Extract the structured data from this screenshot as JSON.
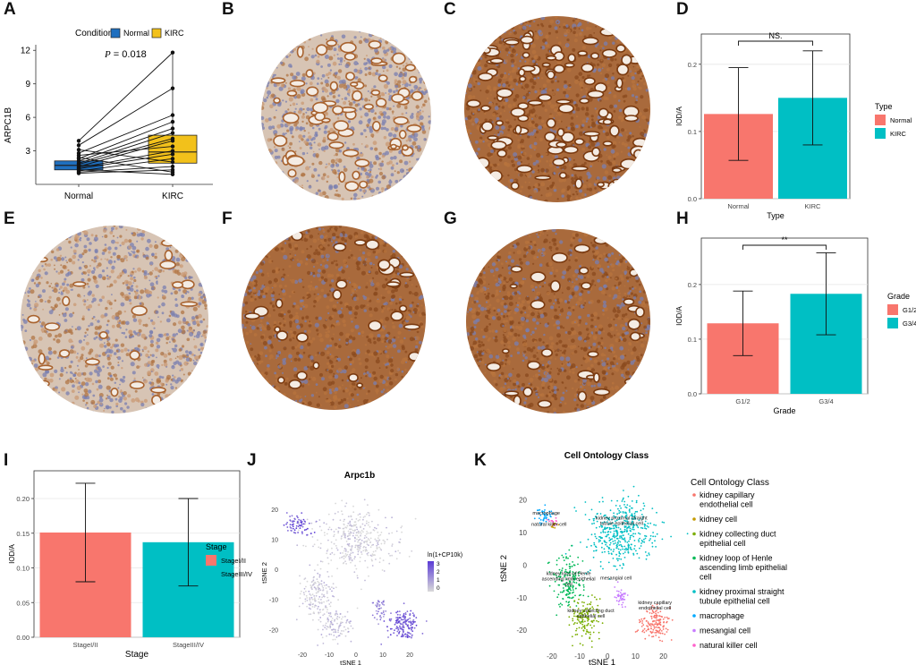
{
  "panels": {
    "A": "A",
    "B": "B",
    "C": "C",
    "D": "D",
    "E": "E",
    "F": "F",
    "G": "G",
    "H": "H",
    "I": "I",
    "J": "J",
    "K": "K"
  },
  "colors": {
    "normal_box": "#1f6fbf",
    "kirc_box": "#f2c11b",
    "salmon": "#f8766d",
    "teal": "#00bfc4",
    "tissue_brown": "#a0602e",
    "tissue_blue": "#8b8fb5",
    "expr_high": "#5b3bd6",
    "expr_low": "#d9d9d9"
  },
  "chart_data": [
    {
      "id": "A",
      "type": "box-paired",
      "title": "",
      "legend_title": "Condition",
      "legend": [
        "Normal",
        "KIRC"
      ],
      "annotation": "P = 0.018",
      "annotation_p": "P",
      "annotation_rest": "= 0.018",
      "xlabel": "",
      "ylabel": "ARPC1B",
      "categories": [
        "Normal",
        "KIRC"
      ],
      "ylim": [
        0,
        12.5
      ],
      "yticks": [
        3,
        6,
        9,
        12
      ],
      "box_normal": {
        "q1": 1.3,
        "median": 1.7,
        "q3": 2.1,
        "whisker_low": 1.0,
        "whisker_high": 3.9
      },
      "box_kirc": {
        "q1": 1.9,
        "median": 2.9,
        "q3": 4.4,
        "whisker_low": 0.9,
        "whisker_high": 11.8
      },
      "pairs": [
        [
          3.9,
          11.8
        ],
        [
          3.5,
          8.6
        ],
        [
          2.8,
          6.2
        ],
        [
          2.3,
          5.6
        ],
        [
          2.1,
          5.0
        ],
        [
          1.9,
          4.6
        ],
        [
          1.8,
          4.1
        ],
        [
          1.6,
          3.9
        ],
        [
          2.6,
          3.4
        ],
        [
          1.5,
          3.0
        ],
        [
          1.4,
          2.7
        ],
        [
          1.2,
          2.3
        ],
        [
          3.1,
          2.0
        ],
        [
          1.1,
          1.6
        ],
        [
          1.0,
          1.3
        ],
        [
          2.4,
          1.1
        ],
        [
          1.3,
          0.9
        ]
      ]
    },
    {
      "id": "D",
      "type": "bar",
      "title": "",
      "xlabel": "Type",
      "ylabel": "IOD/A",
      "legend_title": "Type",
      "categories": [
        "Normal",
        "KIRC"
      ],
      "values": [
        0.126,
        0.15
      ],
      "errors": [
        0.069,
        0.07
      ],
      "ylim": [
        0,
        0.245
      ],
      "yticks": [
        "0.0",
        "0.1",
        "0.2"
      ],
      "ytick_values": [
        0,
        0.1,
        0.2
      ],
      "significance": "NS."
    },
    {
      "id": "H",
      "type": "bar",
      "title": "",
      "xlabel": "Grade",
      "ylabel": "IOD/A",
      "legend_title": "Grade",
      "categories": [
        "G1/2",
        "G3/4"
      ],
      "values": [
        0.129,
        0.183
      ],
      "errors": [
        0.059,
        0.075
      ],
      "ylim": [
        0,
        0.285
      ],
      "yticks": [
        "0.0",
        "0.1",
        "0.2"
      ],
      "ytick_values": [
        0,
        0.1,
        0.2
      ],
      "significance": "**"
    },
    {
      "id": "I",
      "type": "bar",
      "title": "",
      "xlabel": "Stage",
      "ylabel": "IOD/A",
      "legend_title": "Stage",
      "categories": [
        "StageI/II",
        "StageIII/IV"
      ],
      "values": [
        0.151,
        0.137
      ],
      "errors": [
        0.071,
        0.063
      ],
      "ylim": [
        0,
        0.24
      ],
      "yticks": [
        "0.00",
        "0.05",
        "0.10",
        "0.15",
        "0.20"
      ],
      "ytick_values": [
        0,
        0.05,
        0.1,
        0.15,
        0.2
      ],
      "significance": ""
    },
    {
      "id": "J",
      "type": "scatter",
      "title": "Arpc1b",
      "xlabel": "tSNE 1",
      "ylabel": "tSNE 2",
      "xlim": [
        -28,
        24
      ],
      "ylim": [
        -26,
        24
      ],
      "xticks": [
        "-20",
        "-10",
        "0",
        "10",
        "20"
      ],
      "xtick_values": [
        -20,
        -10,
        0,
        10,
        20
      ],
      "yticks": [
        "20",
        "10",
        "0",
        "-10",
        "-20"
      ],
      "ytick_values": [
        20,
        10,
        0,
        -10,
        -20
      ],
      "colorbar_title": "ln(1+CP10k)",
      "colorbar_ticks": [
        "3",
        "2",
        "1",
        "0"
      ],
      "clusters": [
        {
          "cx": -22,
          "cy": 15,
          "sx": 2.5,
          "sy": 1.8,
          "n": 70,
          "level": 0.85
        },
        {
          "cx": 0,
          "cy": 10,
          "sx": 7,
          "sy": 5,
          "n": 380,
          "level": 0.05
        },
        {
          "cx": -15,
          "cy": -8,
          "sx": 3,
          "sy": 4,
          "n": 160,
          "level": 0.1
        },
        {
          "cx": -8,
          "cy": -18,
          "sx": 3,
          "sy": 3,
          "n": 110,
          "level": 0.15
        },
        {
          "cx": 9,
          "cy": -13,
          "sx": 1.2,
          "sy": 2,
          "n": 40,
          "level": 0.55
        },
        {
          "cx": 18,
          "cy": -18,
          "sx": 3,
          "sy": 2.6,
          "n": 160,
          "level": 0.8
        }
      ]
    },
    {
      "id": "K",
      "type": "scatter",
      "title": "Cell Ontology Class",
      "xlabel": "tSNE 1",
      "ylabel": "tSNE 2",
      "xlim": [
        -28,
        24
      ],
      "ylim": [
        -26,
        24
      ],
      "xticks": [
        "-20",
        "-10",
        "0",
        "10",
        "20"
      ],
      "xtick_values": [
        -20,
        -10,
        0,
        10,
        20
      ],
      "yticks": [
        "20",
        "10",
        "0",
        "-10",
        "-20"
      ],
      "ytick_values": [
        20,
        10,
        0,
        -10,
        -20
      ],
      "legend_title": "Cell Ontology Class",
      "legend": [
        {
          "label": "kidney capillary endothelial cell",
          "color": "#f8766d"
        },
        {
          "label": "kidney cell",
          "color": "#c49a00"
        },
        {
          "label": "kidney collecting duct epithelial cell",
          "color": "#7cae00"
        },
        {
          "label": "kidney loop of Henle ascending limb epithelial cell",
          "color": "#00b957"
        },
        {
          "label": "kidney proximal straight tubule epithelial cell",
          "color": "#00bfc4"
        },
        {
          "label": "macrophage",
          "color": "#00a9ff"
        },
        {
          "label": "mesangial cell",
          "color": "#c77cff"
        },
        {
          "label": "natural killer cell",
          "color": "#ff61cc"
        }
      ],
      "legend_lines": [
        [
          "kidney capillary",
          "endothelial cell"
        ],
        [
          "kidney cell"
        ],
        [
          "kidney collecting duct",
          "epithelial cell"
        ],
        [
          "kidney loop of Henle",
          "ascending limb epithelial",
          "cell"
        ],
        [
          "kidney proximal straight",
          "tubule epithelial cell"
        ],
        [
          "macrophage"
        ],
        [
          "mesangial cell"
        ],
        [
          "natural killer cell"
        ]
      ],
      "annotations": [
        {
          "lines": [
            "macrophage"
          ],
          "x": -22,
          "y": 15.5
        },
        {
          "lines": [
            "natural killer cell"
          ],
          "x": -21,
          "y": 12
        },
        {
          "lines": [
            "kidney proximal straight",
            "tubule epithelial cell"
          ],
          "x": 5,
          "y": 14
        },
        {
          "lines": [
            "kidney loop of Henle",
            "ascending limb epithelial",
            "cell"
          ],
          "x": -14,
          "y": -3
        },
        {
          "lines": [
            "mesangial cell"
          ],
          "x": 3,
          "y": -4.5
        },
        {
          "lines": [
            "kidney capillary",
            "endothelial cell"
          ],
          "x": 17,
          "y": -12
        },
        {
          "lines": [
            "kidney collecting duct",
            "epithelial cell"
          ],
          "x": -6,
          "y": -14.5
        }
      ],
      "clusters": [
        {
          "class": 4,
          "cx": 5,
          "cy": 10,
          "sx": 6,
          "sy": 5,
          "n": 420
        },
        {
          "class": 3,
          "cx": -14,
          "cy": -5,
          "sx": 2.8,
          "sy": 4,
          "n": 170
        },
        {
          "class": 2,
          "cx": -8,
          "cy": -16,
          "sx": 2.8,
          "sy": 3.2,
          "n": 140
        },
        {
          "class": 0,
          "cx": 17,
          "cy": -18,
          "sx": 2.8,
          "sy": 2.5,
          "n": 150
        },
        {
          "class": 6,
          "cx": 5,
          "cy": -10,
          "sx": 1.2,
          "sy": 2,
          "n": 40
        },
        {
          "class": 5,
          "cx": -23,
          "cy": 15,
          "sx": 1.6,
          "sy": 1.4,
          "n": 40
        },
        {
          "class": 7,
          "cx": -20,
          "cy": 13,
          "sx": 1,
          "sy": 1,
          "n": 14
        },
        {
          "class": 1,
          "cx": -19,
          "cy": 12,
          "sx": 0.8,
          "sy": 0.8,
          "n": 10
        }
      ]
    }
  ]
}
